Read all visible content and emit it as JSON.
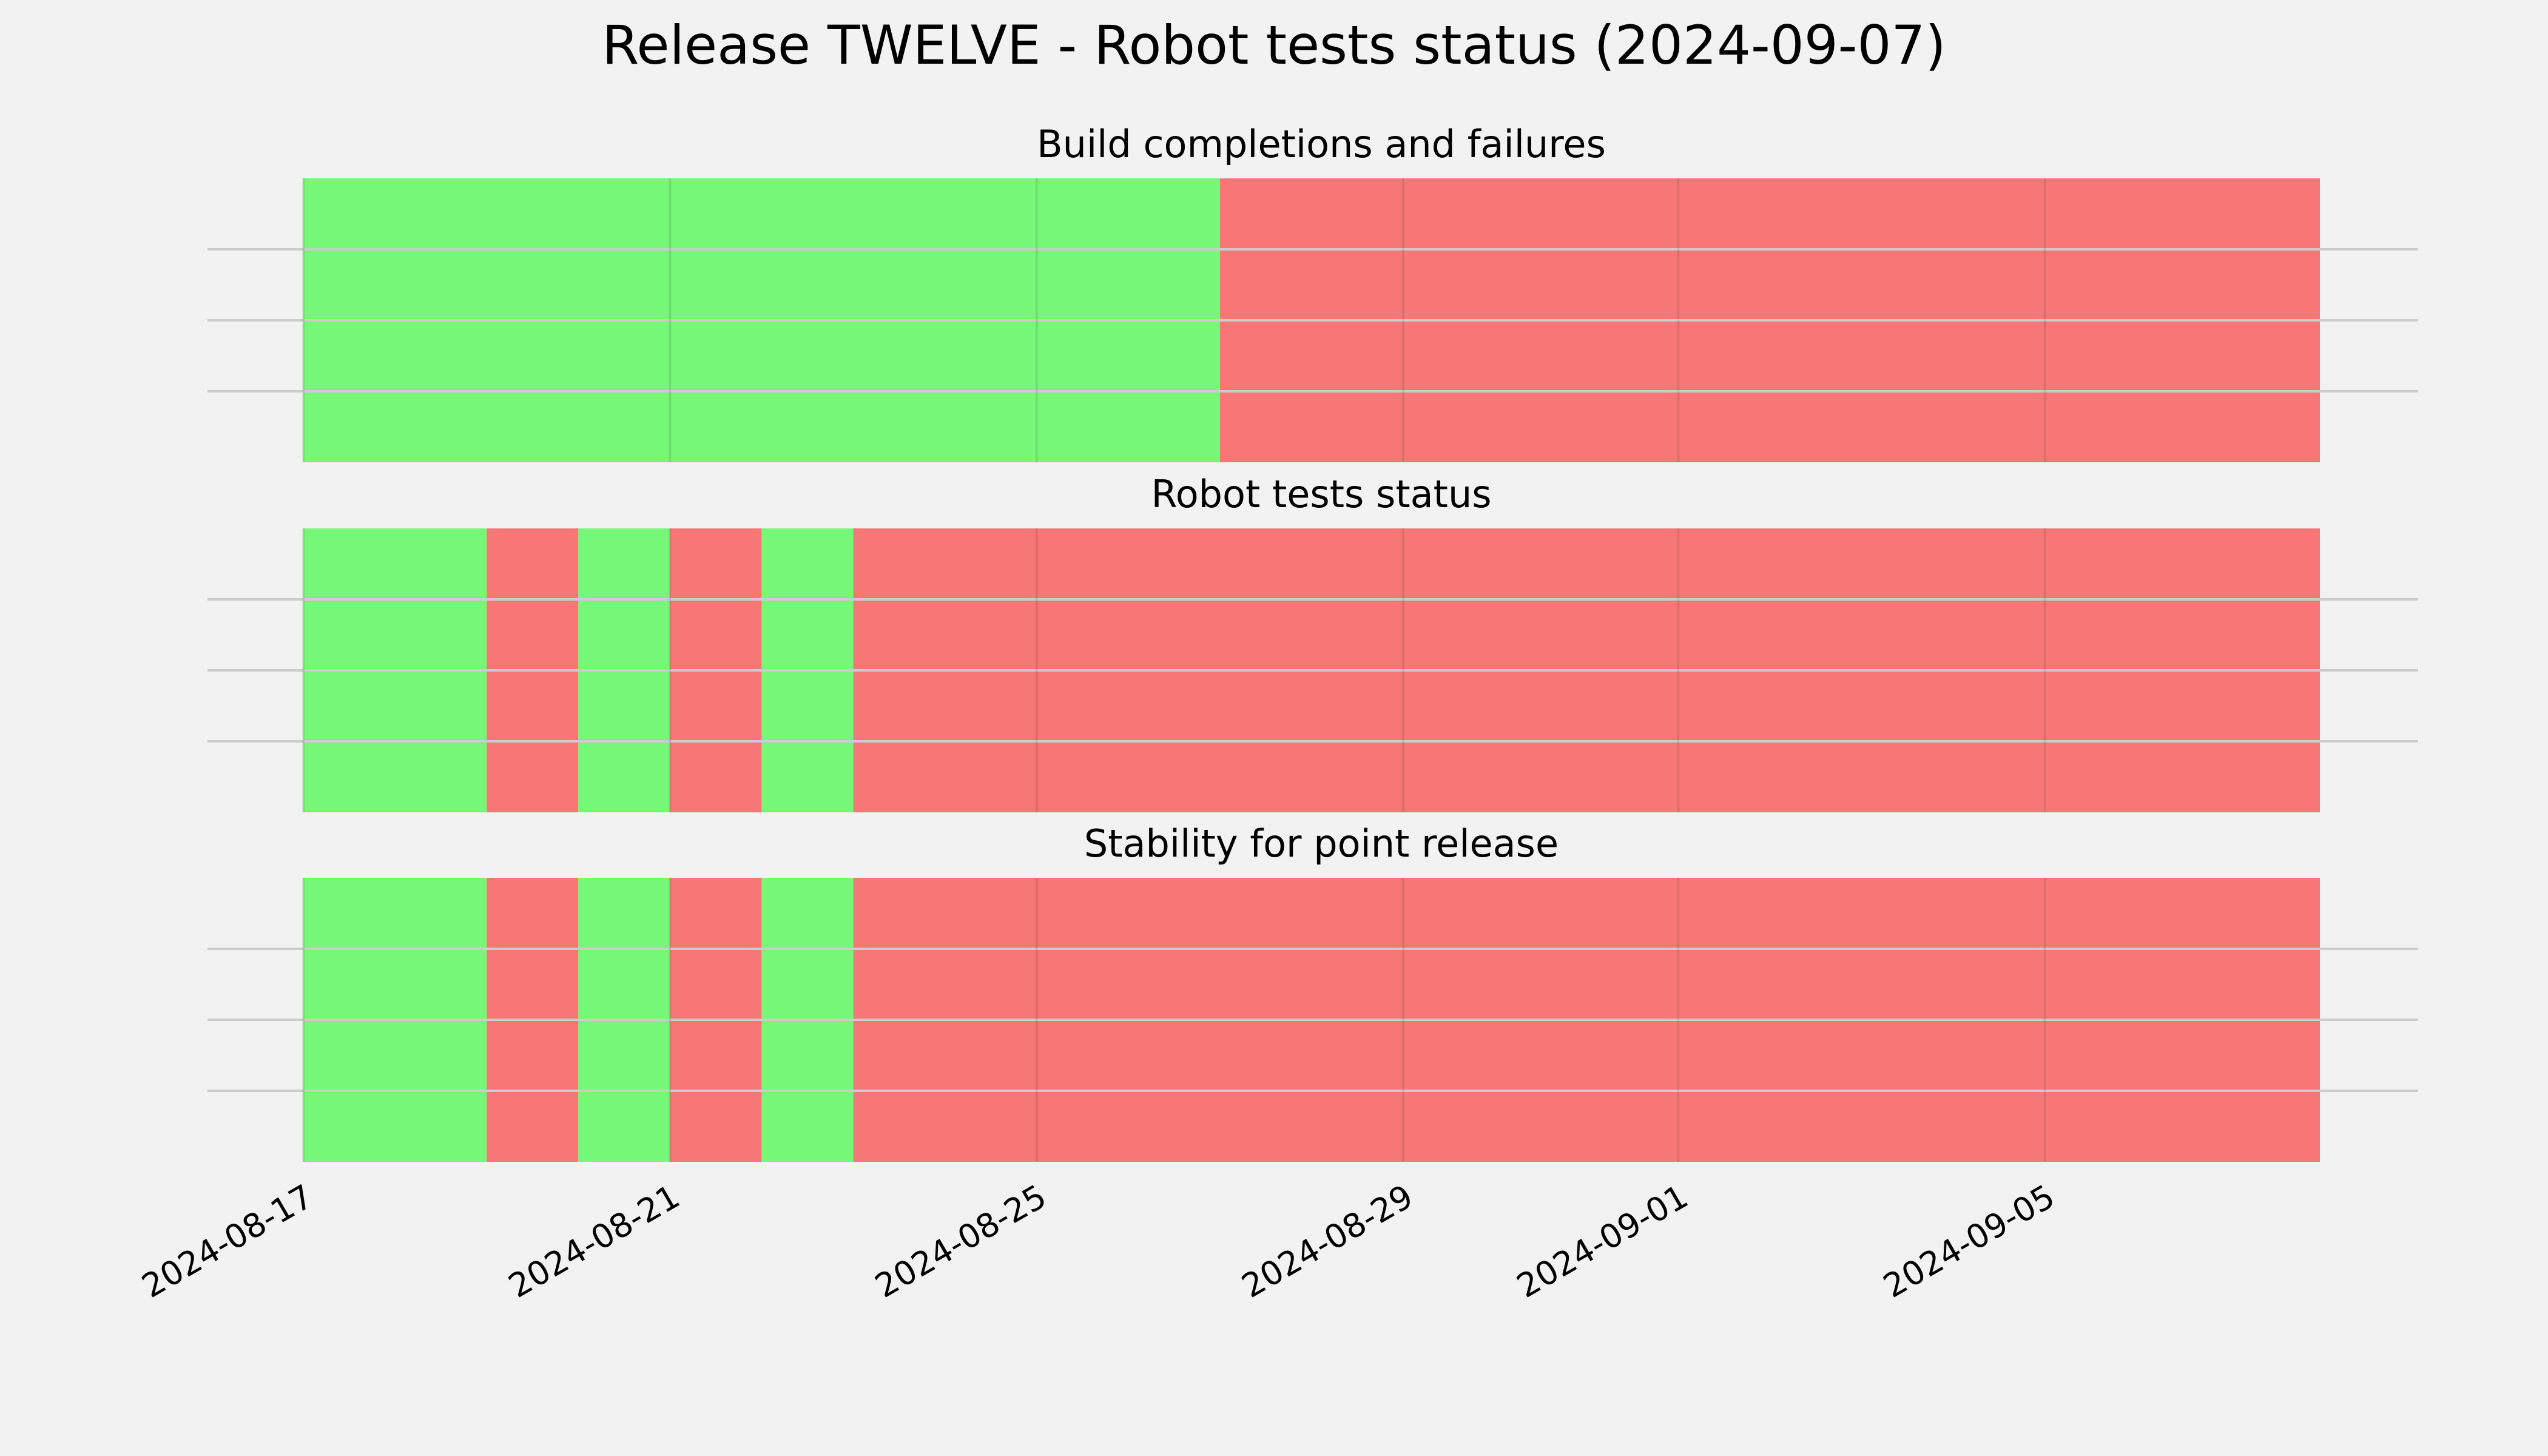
{
  "chart_data": {
    "type": "timeline",
    "title": "Release TWELVE - Robot tests status (2024-09-07)",
    "x_axis": {
      "type": "date",
      "range": [
        "2024-08-17",
        "2024-09-08"
      ],
      "ticks": [
        "2024-08-17",
        "2024-08-21",
        "2024-08-25",
        "2024-08-29",
        "2024-09-01",
        "2024-09-05"
      ]
    },
    "colors": {
      "pass": "#77f777",
      "fail": "#f77777",
      "background": "#f2f2f2",
      "grid": "#cccccc"
    },
    "grid": true,
    "legend": "none",
    "panels": [
      {
        "title": "Build completions and failures",
        "segments": [
          {
            "start": "2024-08-17",
            "end": "2024-08-27",
            "status": "pass"
          },
          {
            "start": "2024-08-27",
            "end": "2024-09-08",
            "status": "fail"
          }
        ]
      },
      {
        "title": "Robot tests status",
        "segments": [
          {
            "start": "2024-08-17",
            "end": "2024-08-19",
            "status": "pass"
          },
          {
            "start": "2024-08-19",
            "end": "2024-08-20",
            "status": "fail"
          },
          {
            "start": "2024-08-20",
            "end": "2024-08-21",
            "status": "pass"
          },
          {
            "start": "2024-08-21",
            "end": "2024-08-22",
            "status": "fail"
          },
          {
            "start": "2024-08-22",
            "end": "2024-08-23",
            "status": "pass"
          },
          {
            "start": "2024-08-23",
            "end": "2024-09-08",
            "status": "fail"
          }
        ]
      },
      {
        "title": "Stability for point release",
        "segments": [
          {
            "start": "2024-08-17",
            "end": "2024-08-19",
            "status": "pass"
          },
          {
            "start": "2024-08-19",
            "end": "2024-08-20",
            "status": "fail"
          },
          {
            "start": "2024-08-20",
            "end": "2024-08-21",
            "status": "pass"
          },
          {
            "start": "2024-08-21",
            "end": "2024-08-22",
            "status": "fail"
          },
          {
            "start": "2024-08-22",
            "end": "2024-08-23",
            "status": "pass"
          },
          {
            "start": "2024-08-23",
            "end": "2024-09-08",
            "status": "fail"
          }
        ]
      }
    ]
  }
}
